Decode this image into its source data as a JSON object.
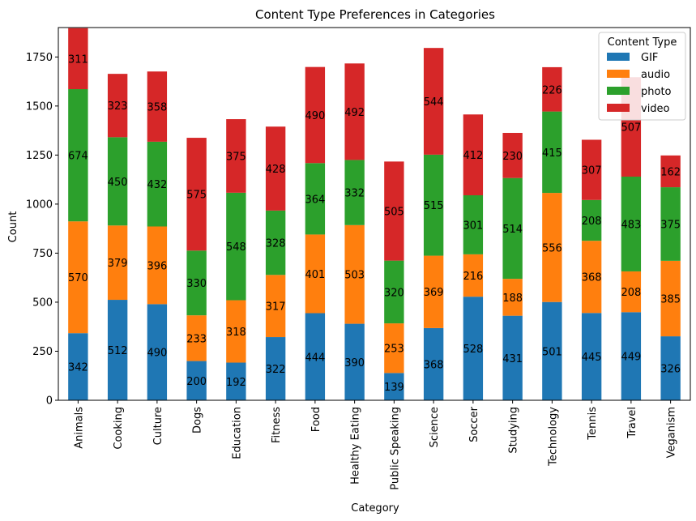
{
  "chart_data": {
    "type": "bar",
    "stacked": true,
    "title": "Content Type Preferences in Categories",
    "xlabel": "Category",
    "ylabel": "Count",
    "ylim": [
      0,
      1900
    ],
    "yticks": [
      0,
      250,
      500,
      750,
      1000,
      1250,
      1500,
      1750
    ],
    "grid": false,
    "legend": {
      "title": "Content Type",
      "placement": "top-right"
    },
    "categories": [
      "Animals",
      "Cooking",
      "Culture",
      "Dogs",
      "Education",
      "Fitness",
      "Food",
      "Healthy Eating",
      "Public Speaking",
      "Science",
      "Soccer",
      "Studying",
      "Technology",
      "Tennis",
      "Travel",
      "Veganism"
    ],
    "series": [
      {
        "name": "GIF",
        "color": "#1f77b4",
        "values": [
          342,
          512,
          490,
          200,
          192,
          322,
          444,
          390,
          139,
          368,
          528,
          431,
          501,
          445,
          449,
          326
        ]
      },
      {
        "name": "audio",
        "color": "#ff7f0e",
        "values": [
          570,
          379,
          396,
          233,
          318,
          317,
          401,
          503,
          253,
          369,
          216,
          188,
          556,
          368,
          208,
          385
        ]
      },
      {
        "name": "photo",
        "color": "#2ca02c",
        "values": [
          674,
          450,
          432,
          330,
          548,
          328,
          364,
          332,
          320,
          515,
          301,
          514,
          415,
          208,
          483,
          375
        ]
      },
      {
        "name": "video",
        "color": "#d62728",
        "values": [
          311,
          323,
          358,
          575,
          375,
          428,
          490,
          492,
          505,
          544,
          412,
          230,
          226,
          307,
          507,
          162
        ]
      }
    ]
  }
}
